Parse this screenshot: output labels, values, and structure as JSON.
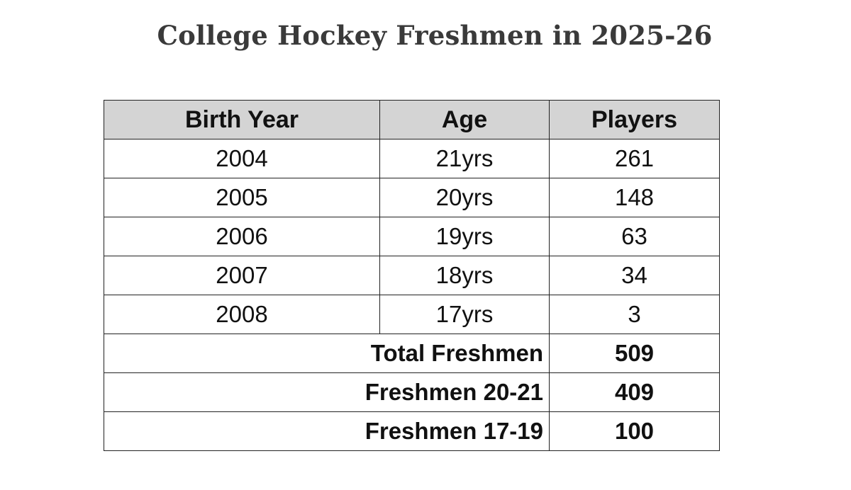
{
  "title": "College Hockey Freshmen in 2025-26",
  "table": {
    "headers": [
      "Birth Year",
      "Age",
      "Players"
    ],
    "rows": [
      {
        "birth_year": "2004",
        "age": "21yrs",
        "players": "261"
      },
      {
        "birth_year": "2005",
        "age": "20yrs",
        "players": "148"
      },
      {
        "birth_year": "2006",
        "age": "19yrs",
        "players": "63"
      },
      {
        "birth_year": "2007",
        "age": "18yrs",
        "players": "34"
      },
      {
        "birth_year": "2008",
        "age": "17yrs",
        "players": "3"
      }
    ],
    "summary": [
      {
        "label": "Total Freshmen",
        "value": "509"
      },
      {
        "label": "Freshmen 20-21",
        "value": "409"
      },
      {
        "label": "Freshmen 17-19",
        "value": "100"
      }
    ]
  },
  "colors": {
    "header_background": "#d4d4d4",
    "border": "#222222",
    "title_text": "#3a3a3a"
  }
}
